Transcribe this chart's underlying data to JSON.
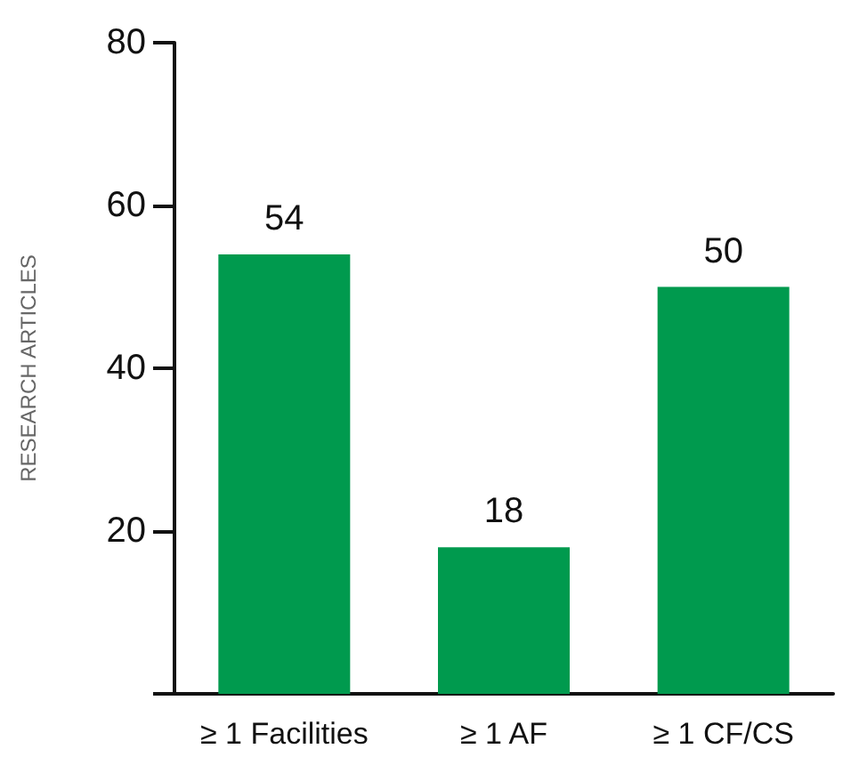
{
  "chart_data": {
    "type": "bar",
    "ylabel": "RESEARCH ARTICLES",
    "categories": [
      "≥ 1 Facilities",
      "≥ 1 AF",
      "≥ 1 CF/CS"
    ],
    "values": [
      54,
      18,
      50
    ],
    "color": "#009a4e",
    "ylim": [
      0,
      80
    ],
    "yticks": [
      {
        "value": 0,
        "label": null
      },
      20,
      40,
      60,
      80
    ],
    "data_labels": true,
    "grid": false
  }
}
